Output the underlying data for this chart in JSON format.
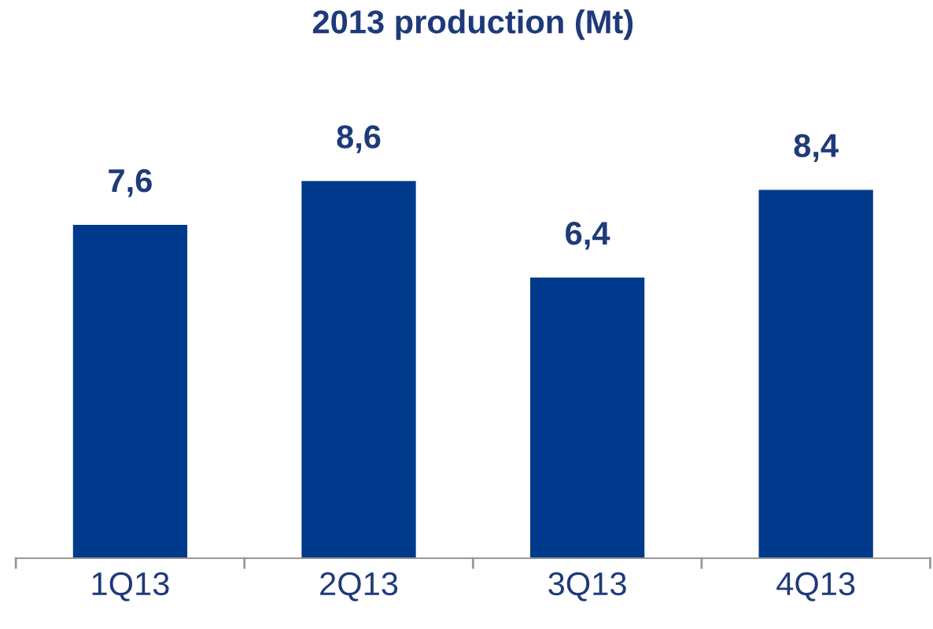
{
  "chart_data": {
    "type": "bar",
    "title": "2013 production (Mt)",
    "categories": [
      "1Q13",
      "2Q13",
      "3Q13",
      "4Q13"
    ],
    "values": [
      7.6,
      8.6,
      6.4,
      8.4
    ],
    "value_labels": [
      "7,6",
      "8,6",
      "6,4",
      "8,4"
    ],
    "color": "#003a8c"
  }
}
